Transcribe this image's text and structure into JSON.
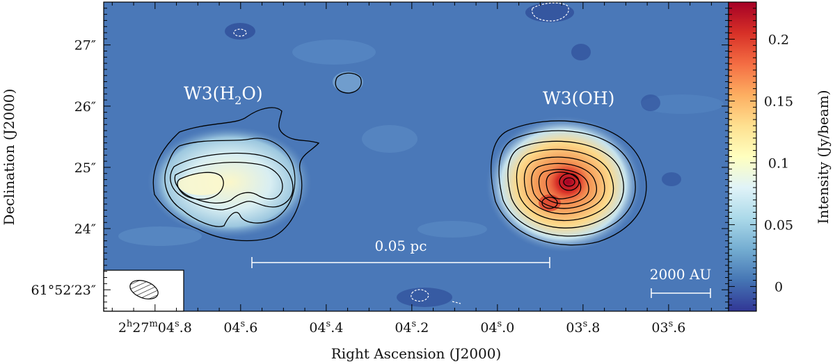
{
  "chart_data": {
    "type": "heatmap",
    "title": "",
    "xlabel": "Right Ascension (J2000)",
    "ylabel": "Declination (J2000)",
    "colorbar": {
      "label": "Intensity (Jy/beam)",
      "range": [
        -0.02,
        0.23
      ],
      "ticks": [
        0,
        0.05,
        0.1,
        0.15,
        0.2
      ],
      "tick_labels": [
        "0",
        "0.05",
        "0.1",
        "0.15",
        "0.2"
      ],
      "colormap": [
        "#313695",
        "#4575b4",
        "#74add1",
        "#abd9e9",
        "#e0f3f8",
        "#ffffbf",
        "#fee090",
        "#fdae61",
        "#f46d43",
        "#d73027",
        "#a50026"
      ]
    },
    "x_axis": {
      "ticks": [
        {
          "main": "2",
          "sup1": "h",
          "mid": "27",
          "sup2": "m",
          "sec": "04",
          "sup3": "s",
          "frac": ".8"
        },
        {
          "main": "",
          "sup1": "",
          "mid": "",
          "sup2": "",
          "sec": "04",
          "sup3": "s",
          "frac": ".6"
        },
        {
          "main": "",
          "sup1": "",
          "mid": "",
          "sup2": "",
          "sec": "04",
          "sup3": "s",
          "frac": ".4"
        },
        {
          "main": "",
          "sup1": "",
          "mid": "",
          "sup2": "",
          "sec": "04",
          "sup3": "s",
          "frac": ".2"
        },
        {
          "main": "",
          "sup1": "",
          "mid": "",
          "sup2": "",
          "sec": "04",
          "sup3": "s",
          "frac": ".0"
        },
        {
          "main": "",
          "sup1": "",
          "mid": "",
          "sup2": "",
          "sec": "03",
          "sup3": "s",
          "frac": ".8"
        },
        {
          "main": "",
          "sup1": "",
          "mid": "",
          "sup2": "",
          "sec": "03",
          "sup3": "s",
          "frac": ".6"
        }
      ],
      "tick_values_s": [
        4.8,
        4.6,
        4.4,
        4.2,
        4.0,
        3.8,
        3.6
      ],
      "range_s": [
        4.92,
        3.46
      ]
    },
    "y_axis": {
      "tick_labels": [
        "27″",
        "26″",
        "25″",
        "24″",
        "61°52′23″"
      ],
      "tick_values_arcsec": [
        27,
        26,
        25,
        24,
        23
      ],
      "range_arcsec": [
        22.65,
        27.7
      ]
    },
    "annotations": {
      "source_left": {
        "pre": "W3(H",
        "sub": "2",
        "post": "O)"
      },
      "source_right": "W3(OH)",
      "scalebar_pc": "0.05 pc",
      "scalebar_au": "2000 AU"
    },
    "sources": [
      {
        "name": "W3(OH)",
        "peak_jy_beam": 0.23
      },
      {
        "name": "W3(H2O)",
        "peak_jy_beam": 0.11
      }
    ]
  }
}
